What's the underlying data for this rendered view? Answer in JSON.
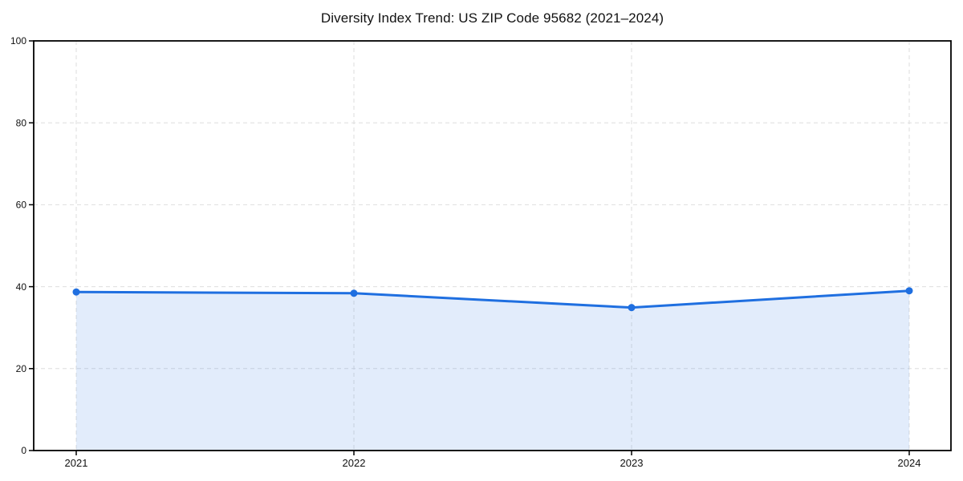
{
  "figure": {
    "background": "#ffffff"
  },
  "chart_data": {
    "type": "area",
    "title": "Diversity Index Trend: US ZIP Code 95682 (2021–2024)",
    "categories": [
      "2021",
      "2022",
      "2023",
      "2024"
    ],
    "series": [
      {
        "name": "Diversity Index",
        "values": [
          38.7,
          38.4,
          34.9,
          39.0
        ]
      }
    ],
    "xlabel": "",
    "ylabel": "",
    "ylim": [
      0,
      100
    ],
    "yticks": [
      0,
      20,
      40,
      60,
      80,
      100
    ],
    "grid": true,
    "grid_style": "dashed",
    "legend": "none",
    "marker": "circle",
    "line_color": "#1f6fe0",
    "fill_color": "rgba(31,111,224,0.13)",
    "grid_color": "#dedede",
    "axis_color": "#000000",
    "tick_label_color": "#111111"
  }
}
